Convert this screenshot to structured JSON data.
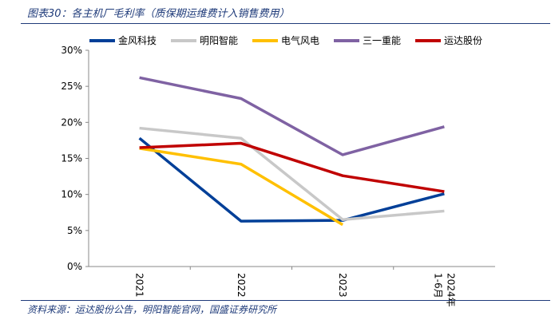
{
  "title": "图表30：各主机厂毛利率（质保期运维费计入销售费用）",
  "source": "资料来源：运达股份公告，明阳智能官网，国盛证券研究所",
  "chart_data": {
    "type": "line",
    "title": "各主机厂毛利率（质保期运维费计入销售费用）",
    "categories": [
      "2021",
      "2022",
      "2023",
      "2024年1-6月"
    ],
    "ylim": [
      0,
      30
    ],
    "yticks": [
      "0%",
      "5%",
      "10%",
      "15%",
      "20%",
      "25%",
      "30%"
    ],
    "legend_position": "top",
    "series": [
      {
        "name": "金风科技",
        "color": "#003f98",
        "values": [
          17.8,
          6.3,
          6.4,
          10.1
        ]
      },
      {
        "name": "明阳智能",
        "color": "#c8c8c8",
        "values": [
          19.2,
          17.8,
          6.5,
          7.7
        ]
      },
      {
        "name": "电气风电",
        "color": "#ffc000",
        "values": [
          16.4,
          14.2,
          5.8,
          null
        ]
      },
      {
        "name": "三一重能",
        "color": "#7f62a3",
        "values": [
          26.2,
          23.3,
          15.5,
          19.4
        ]
      },
      {
        "name": "运达股份",
        "color": "#c00000",
        "values": [
          16.5,
          17.1,
          12.6,
          10.4
        ]
      }
    ]
  }
}
